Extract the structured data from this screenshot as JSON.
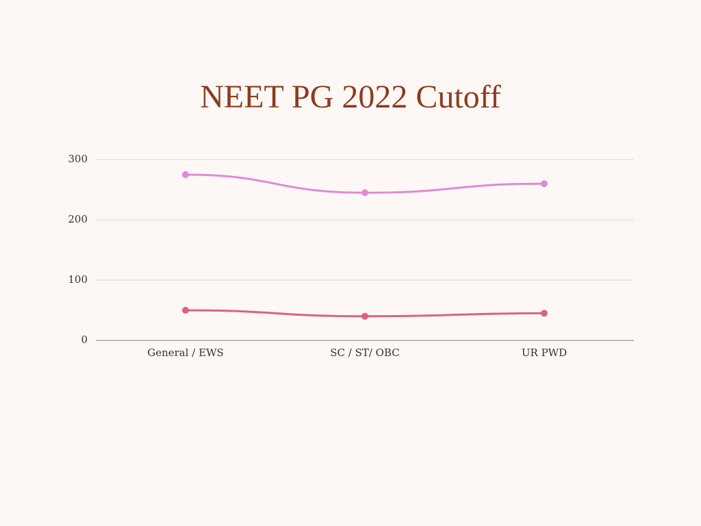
{
  "chart_data": {
    "type": "line",
    "title": "NEET PG 2022 Cutoff",
    "categories": [
      "General / EWS",
      "SC / ST/ OBC",
      "UR PWD"
    ],
    "series": [
      {
        "color": "#e08ad8",
        "values": [
          275,
          245,
          260
        ]
      },
      {
        "color": "#db6280",
        "values": [
          50,
          40,
          45
        ]
      }
    ],
    "ylim": [
      0,
      300
    ],
    "yticks": [
      0,
      100,
      200,
      300
    ],
    "grid": true
  }
}
